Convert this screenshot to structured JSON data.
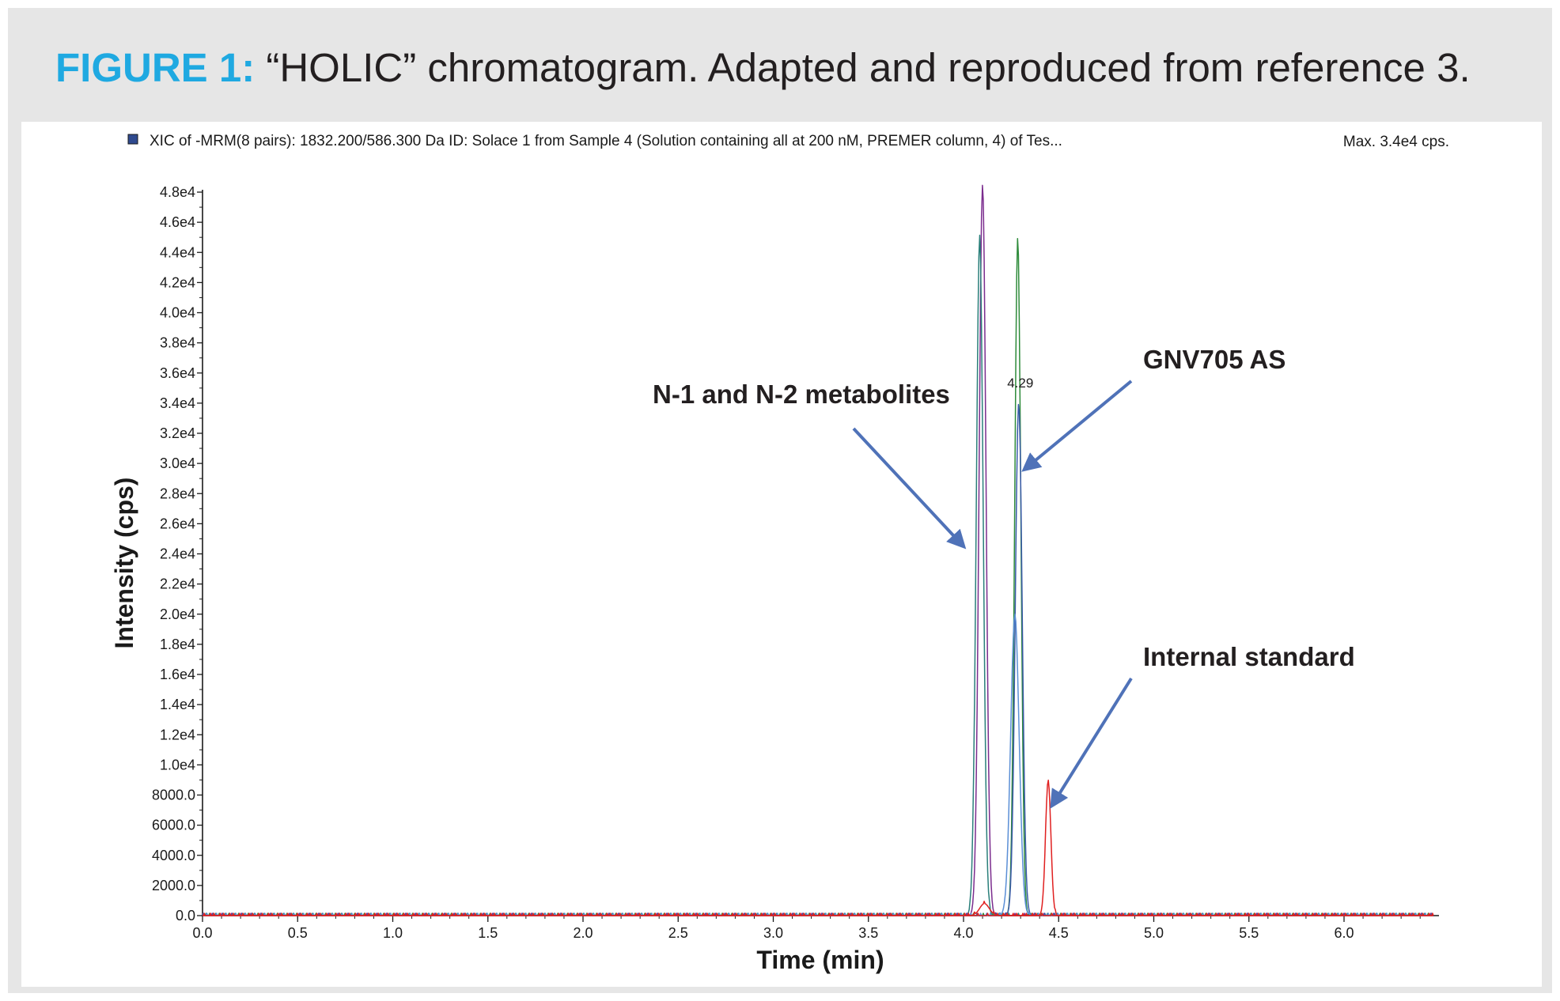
{
  "figure": {
    "label": "FIGURE 1:",
    "caption": "“HOLIC” chromatogram. Adapted and reproduced from reference 3."
  },
  "chart_data": {
    "type": "line",
    "info_line": "XIC of -MRM(8 pairs): 1832.200/586.300 Da ID: Solace 1 from Sample 4 (Solution containing all at 200 nM, PREMER column, 4) of Tes...",
    "max_label": "Max. 3.4e4 cps.",
    "xlabel": "Time (min)",
    "ylabel": "Intensity (cps)",
    "xlim": [
      0,
      6.47
    ],
    "ylim": [
      0,
      48500
    ],
    "x_ticks": [
      "0.0",
      "0.5",
      "1.0",
      "1.5",
      "2.0",
      "2.5",
      "3.0",
      "3.5",
      "4.0",
      "4.5",
      "5.0",
      "5.5",
      "6.0"
    ],
    "y_ticks": [
      {
        "value": 0,
        "label": "0.0"
      },
      {
        "value": 2000,
        "label": "2000.0"
      },
      {
        "value": 4000,
        "label": "4000.0"
      },
      {
        "value": 6000,
        "label": "6000.0"
      },
      {
        "value": 8000,
        "label": "8000.0"
      },
      {
        "value": 10000,
        "label": "1.0e4"
      },
      {
        "value": 12000,
        "label": "1.2e4"
      },
      {
        "value": 14000,
        "label": "1.4e4"
      },
      {
        "value": 16000,
        "label": "1.6e4"
      },
      {
        "value": 18000,
        "label": "1.8e4"
      },
      {
        "value": 20000,
        "label": "2.0e4"
      },
      {
        "value": 22000,
        "label": "2.2e4"
      },
      {
        "value": 24000,
        "label": "2.4e4"
      },
      {
        "value": 26000,
        "label": "2.6e4"
      },
      {
        "value": 28000,
        "label": "2.8e4"
      },
      {
        "value": 30000,
        "label": "3.0e4"
      },
      {
        "value": 32000,
        "label": "3.2e4"
      },
      {
        "value": 34000,
        "label": "3.4e4"
      },
      {
        "value": 36000,
        "label": "3.6e4"
      },
      {
        "value": 38000,
        "label": "3.8e4"
      },
      {
        "value": 40000,
        "label": "4.0e4"
      },
      {
        "value": 42000,
        "label": "4.2e4"
      },
      {
        "value": 44000,
        "label": "4.4e4"
      },
      {
        "value": 46000,
        "label": "4.6e4"
      },
      {
        "value": 48000,
        "label": "4.8e4"
      }
    ],
    "series": [
      {
        "name": "N-1 metabolite (purple)",
        "color": "#7b2d8e",
        "peak_time": 4.1,
        "peak_height": 48500,
        "width": 0.018
      },
      {
        "name": "N-2 metabolite (teal)",
        "color": "#2a7f7a",
        "peak_time": 4.085,
        "peak_height": 45000,
        "width": 0.018
      },
      {
        "name": "GNV705 AS (green)",
        "color": "#2e8b3a",
        "peak_time": 4.285,
        "peak_height": 45000,
        "width": 0.016
      },
      {
        "name": "GNV705 AS (blue)",
        "color": "#3a5aa8",
        "peak_time": 4.29,
        "peak_height": 34000,
        "width": 0.018
      },
      {
        "name": "GNV705 AS (light blue)",
        "color": "#5b8fd6",
        "peak_time": 4.27,
        "peak_height": 20000,
        "width": 0.022
      },
      {
        "name": "N-1 minor (red)",
        "color": "#e02020",
        "peak_time": 4.11,
        "peak_height": 800,
        "width": 0.025
      },
      {
        "name": "Internal standard (red)",
        "color": "#e02020",
        "peak_time": 4.445,
        "peak_height": 9000,
        "width": 0.014
      }
    ],
    "peak_labels": [
      {
        "text": "4.29",
        "x": 4.29,
        "y": 34000
      }
    ],
    "annotations": [
      {
        "text": "N-1 and N-2 metabolites",
        "arrow_to_time": 4.0,
        "arrow_to_intensity": 24500
      },
      {
        "text": "GNV705 AS",
        "arrow_to_time": 4.32,
        "arrow_to_intensity": 29600
      },
      {
        "text": "Internal standard",
        "arrow_to_time": 4.465,
        "arrow_to_intensity": 7300
      }
    ]
  }
}
